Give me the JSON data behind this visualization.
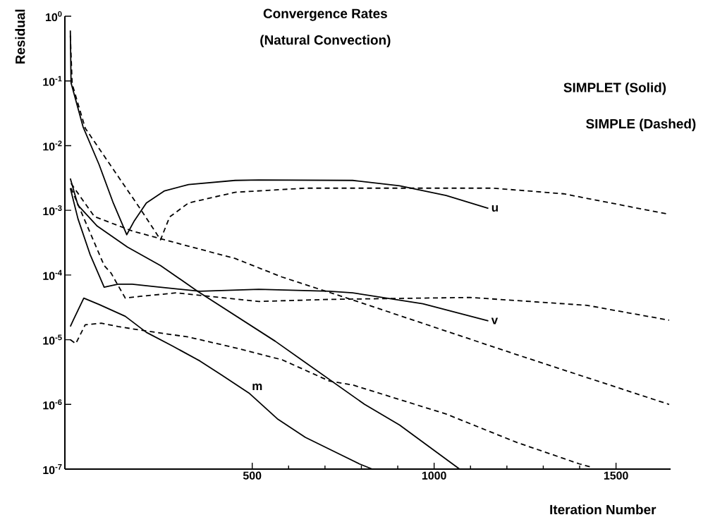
{
  "chart_data": {
    "type": "line",
    "title": "Convergence Rates",
    "subtitle": "(Natural Convection)",
    "xlabel": "Iteration Number",
    "ylabel": "Residual",
    "log": "y",
    "marker": "none",
    "xlim": [
      -15,
      1650
    ],
    "ylim": [
      1e-07,
      1
    ],
    "xticks": [
      500,
      1000,
      1500
    ],
    "yticks": [
      {
        "value": 1,
        "label": "10$^{0}$"
      },
      {
        "value": 0.1,
        "label": "10$^{-1}$"
      },
      {
        "value": 0.01,
        "label": "10$^{-2}$"
      },
      {
        "value": 0.001,
        "label": "10$^{-3}$"
      },
      {
        "value": 0.0001,
        "label": "10$^{-4}$"
      },
      {
        "value": 1e-05,
        "label": "10$^{-5}$"
      },
      {
        "value": 1e-06,
        "label": "10$^{-6}$"
      },
      {
        "value": 1e-07,
        "label": "10$^{-7}$"
      }
    ],
    "series": [
      {
        "name": "u",
        "color": "#000000",
        "line_style": "solid",
        "x": [
          0,
          2,
          35,
          79,
          118,
          155,
          176,
          209,
          259,
          325,
          453,
          518,
          776,
          905,
          1033,
          1149
        ],
        "values": [
          0.6,
          0.093,
          0.0195,
          0.0051,
          0.0013,
          0.00042,
          0.00069,
          0.0013,
          0.002,
          0.0025,
          0.0029,
          0.00295,
          0.0029,
          0.0024,
          0.0017,
          0.00107
        ]
      },
      {
        "color": "#000000",
        "line_style": "dashed",
        "x": [
          0,
          5,
          41,
          118,
          195,
          248,
          273,
          325,
          453,
          646,
          1162,
          1356,
          1485,
          1640
        ],
        "values": [
          0.5,
          0.09,
          0.0186,
          0.0043,
          0.001,
          0.00035,
          0.00079,
          0.0013,
          0.0019,
          0.0022,
          0.0022,
          0.0018,
          0.0013,
          0.00088
        ]
      },
      {
        "color": "#000000",
        "line_style": "solid",
        "x": [
          0,
          21,
          74,
          157,
          248,
          350,
          563,
          809,
          905,
          1070
        ],
        "values": [
          0.0031,
          0.0012,
          0.00057,
          0.00027,
          0.00014,
          5.6e-05,
          9.5e-06,
          1e-06,
          4.8e-07,
          1e-07
        ]
      },
      {
        "color": "#000000",
        "line_style": "dashed",
        "x": [
          2,
          66,
          170,
          259,
          453,
          582,
          789,
          1226,
          1646
        ],
        "values": [
          0.0026,
          0.0008,
          0.00048,
          0.00035,
          0.00018,
          9.3e-05,
          3.9e-05,
          5.9e-06,
          1e-06
        ]
      },
      {
        "name": "v",
        "color": "#000000",
        "line_style": "solid",
        "x": [
          0,
          21,
          54,
          93,
          131,
          170,
          233,
          356,
          518,
          712,
          776,
          969,
          1149
        ],
        "values": [
          0.0022,
          0.00074,
          0.00021,
          6.5e-05,
          7.2e-05,
          7.2e-05,
          6.6e-05,
          5.6e-05,
          6e-05,
          5.6e-05,
          5.3e-05,
          3.6e-05,
          1.95e-05
        ]
      },
      {
        "color": "#000000",
        "line_style": "dashed",
        "x": [
          2,
          93,
          112,
          151,
          195,
          292,
          518,
          712,
          1099,
          1420,
          1646
        ],
        "values": [
          0.0022,
          0.00014,
          0.000107,
          4.4e-05,
          4.7e-05,
          5.3e-05,
          3.9e-05,
          4.2e-05,
          4.5e-05,
          3.4e-05,
          2e-05
        ]
      },
      {
        "name": "m",
        "color": "#000000",
        "line_style": "solid",
        "x": [
          0,
          8,
          37,
          79,
          151,
          209,
          279,
          356,
          414,
          491,
          569,
          646,
          723,
          795,
          830
        ],
        "values": [
          1.6e-05,
          2e-05,
          4.4e-05,
          3.5e-05,
          2.3e-05,
          1.3e-05,
          8.1e-06,
          4.7e-06,
          2.9e-06,
          1.5e-06,
          6e-07,
          3.1e-07,
          1.9e-07,
          1.2e-07,
          1e-07
        ]
      },
      {
        "color": "#000000",
        "line_style": "dashed",
        "x": [
          0,
          15,
          41,
          85,
          131,
          195,
          325,
          453,
          582,
          712,
          776,
          1033,
          1226,
          1400,
          1433
        ],
        "values": [
          1e-05,
          8.7e-06,
          1.7e-05,
          1.8e-05,
          1.6e-05,
          1.4e-05,
          1.1e-05,
          7.5e-06,
          4.9e-06,
          2.3e-06,
          2e-06,
          7.1e-07,
          2.6e-07,
          1.2e-07,
          1.07e-07
        ]
      }
    ],
    "annotations": [
      "SIMPLET (Solid)",
      "SIMPLE (Dashed)"
    ]
  }
}
